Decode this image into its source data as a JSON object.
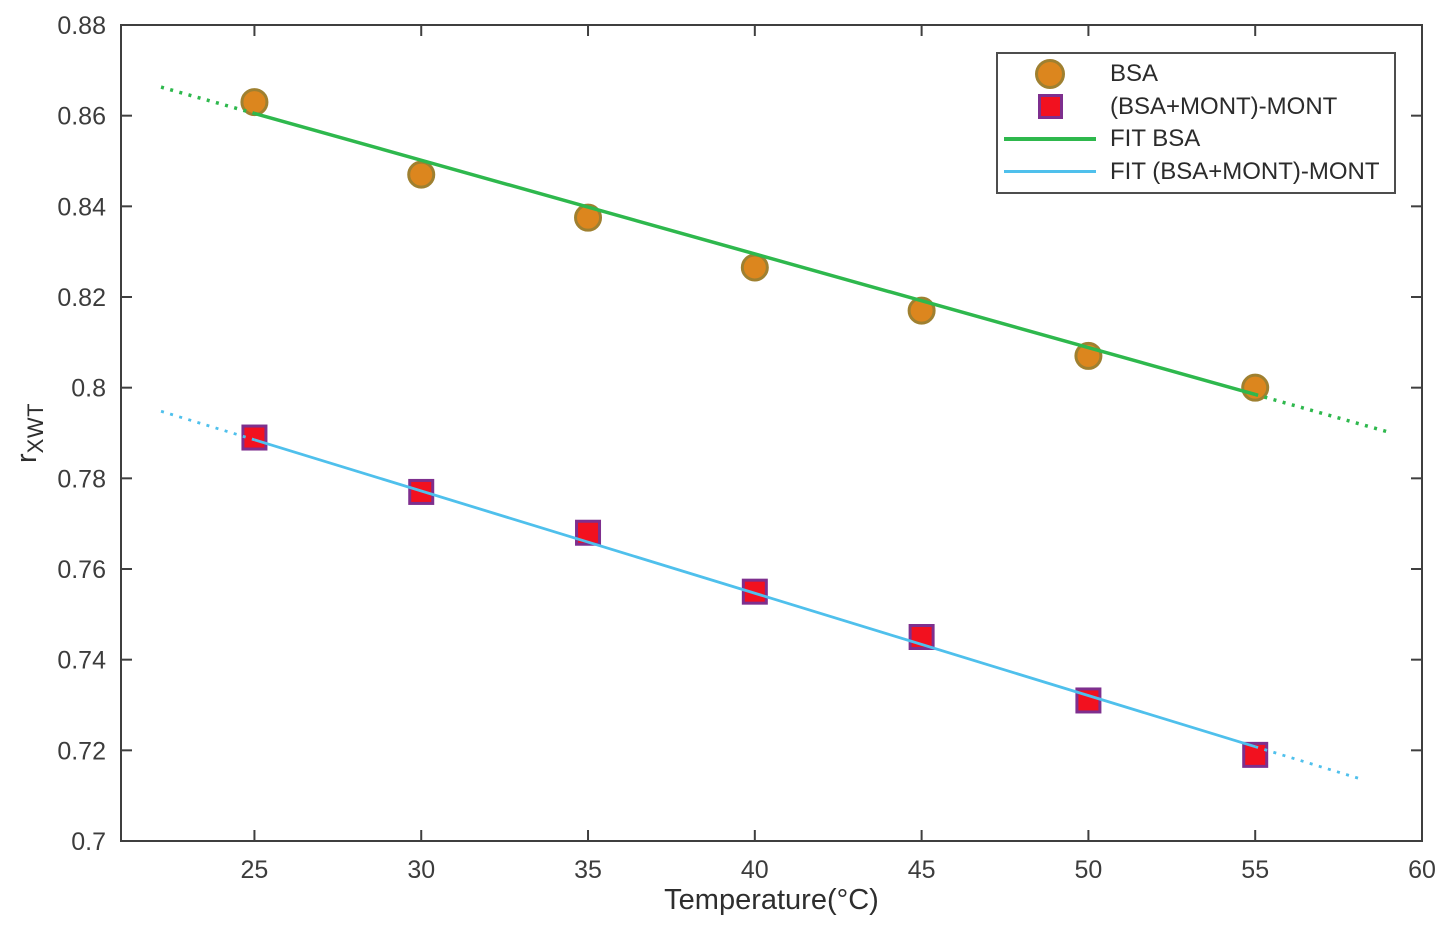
{
  "chart_data": {
    "type": "scatter",
    "title": "",
    "xlabel": "Temperature(°C)",
    "ylabel": {
      "base": "r",
      "subscript": "XWT"
    },
    "xlim": [
      21,
      60
    ],
    "ylim": [
      0.7,
      0.88
    ],
    "grid": false,
    "axis_color": "#3f3f3f",
    "xticks": [
      25,
      30,
      35,
      40,
      45,
      50,
      55,
      60
    ],
    "xtick_labels": [
      "25",
      "30",
      "35",
      "40",
      "45",
      "50",
      "55",
      "60"
    ],
    "yticks": [
      0.7,
      0.72,
      0.74,
      0.76,
      0.78,
      0.8,
      0.82,
      0.84,
      0.86,
      0.88
    ],
    "ytick_labels": [
      "0.7",
      "0.72",
      "0.74",
      "0.76",
      "0.78",
      "0.8",
      "0.82",
      "0.84",
      "0.86",
      "0.88"
    ],
    "x": [
      25,
      30,
      35,
      40,
      45,
      50,
      55
    ],
    "series": [
      {
        "name": "BSA",
        "marker": "circle",
        "fill": "#dc861e",
        "edge": "#9f8030",
        "values": [
          0.863,
          0.847,
          0.8375,
          0.8265,
          0.817,
          0.807,
          0.8
        ]
      },
      {
        "name": "(BSA+MONT)-MONT",
        "marker": "square",
        "fill": "#f2111f",
        "edge": "#7e2f8e",
        "values": [
          0.789,
          0.777,
          0.768,
          0.755,
          0.745,
          0.731,
          0.719
        ]
      }
    ],
    "fits": [
      {
        "name": "FIT BSA",
        "color": "#2eb84d",
        "solid_x": [
          25,
          55
        ],
        "solid_y": [
          0.8605,
          0.7985
        ],
        "dotted_pre_x": [
          22.2,
          25
        ],
        "dotted_pre_y": [
          0.8663,
          0.8605
        ],
        "dotted_post_x": [
          55,
          59
        ],
        "dotted_post_y": [
          0.7985,
          0.7902
        ]
      },
      {
        "name": "FIT (BSA+MONT)-MONT",
        "color": "#4fc0ec",
        "solid_x": [
          25,
          55
        ],
        "solid_y": [
          0.7885,
          0.7208
        ],
        "dotted_pre_x": [
          22.2,
          25
        ],
        "dotted_pre_y": [
          0.7948,
          0.7885
        ],
        "dotted_post_x": [
          55,
          58.2
        ],
        "dotted_post_y": [
          0.7208,
          0.7136
        ]
      }
    ],
    "legend": [
      {
        "label": "BSA"
      },
      {
        "label": "(BSA+MONT)-MONT"
      },
      {
        "label": "FIT BSA"
      },
      {
        "label": "FIT (BSA+MONT)-MONT"
      }
    ],
    "legend_position": "top-right"
  }
}
